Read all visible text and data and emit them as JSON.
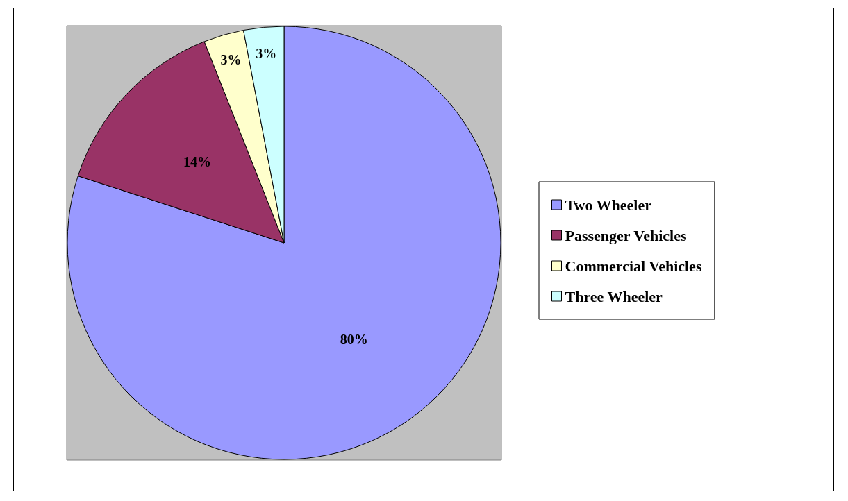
{
  "chart_data": {
    "type": "pie",
    "categories": [
      "Two Wheeler",
      "Passenger Vehicles",
      "Commercial Vehicles",
      "Three Wheeler"
    ],
    "values": [
      80,
      14,
      3,
      3
    ],
    "colors": [
      "#9999ff",
      "#993366",
      "#ffffcc",
      "#ccffff"
    ],
    "value_labels": [
      "80%",
      "14%",
      "3%",
      "3%"
    ],
    "legend": "right"
  }
}
